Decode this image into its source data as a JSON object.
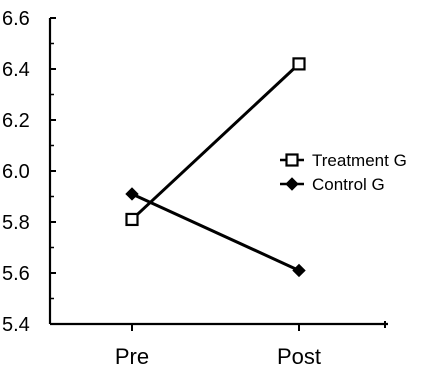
{
  "chart_data": {
    "type": "line",
    "categories": [
      "Pre",
      "Post"
    ],
    "ylim": [
      5.4,
      6.6
    ],
    "y_ticks": [
      5.4,
      5.6,
      5.8,
      6.0,
      6.2,
      6.4,
      6.6
    ],
    "y_tick_labels": [
      "5.4",
      "5.6",
      "5.8",
      "6.0",
      "6.2",
      "6.4",
      "6.6"
    ],
    "grid": false,
    "legend_position": "right",
    "series": [
      {
        "name": "Treatment G",
        "marker": "open-square",
        "values": [
          5.81,
          6.42
        ]
      },
      {
        "name": "Control G",
        "marker": "filled-diamond",
        "values": [
          5.91,
          5.61
        ]
      }
    ],
    "title": "",
    "xlabel": "",
    "ylabel": ""
  }
}
